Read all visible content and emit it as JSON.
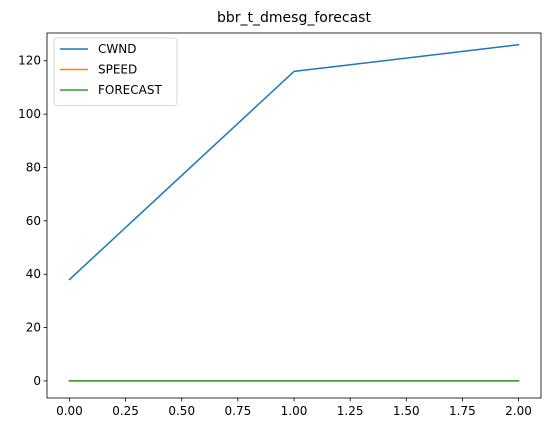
{
  "chart_data": {
    "type": "line",
    "title": "bbr_t_dmesg_forecast",
    "xlabel": "",
    "ylabel": "",
    "x": [
      0,
      1,
      2
    ],
    "series": [
      {
        "name": "CWND",
        "values": [
          38,
          116,
          126
        ],
        "color": "#1f77b4"
      },
      {
        "name": "SPEED",
        "values": [
          0,
          0,
          0
        ],
        "color": "#ff7f0e"
      },
      {
        "name": "FORECAST",
        "values": [
          0,
          0,
          0
        ],
        "color": "#2ca02c"
      }
    ],
    "xlim": [
      -0.1,
      2.1
    ],
    "ylim": [
      -6.4,
      130.4
    ],
    "x_ticks": [
      0,
      0.25,
      0.5,
      0.75,
      1,
      1.25,
      1.5,
      1.75,
      2
    ],
    "x_tick_labels": [
      "0.00",
      "0.25",
      "0.50",
      "0.75",
      "1.00",
      "1.25",
      "1.50",
      "1.75",
      "2.00"
    ],
    "y_ticks": [
      0,
      20,
      40,
      60,
      80,
      100,
      120
    ],
    "y_tick_labels": [
      "0",
      "20",
      "40",
      "60",
      "80",
      "100",
      "120"
    ],
    "grid": false,
    "legend_position": "upper-left"
  }
}
